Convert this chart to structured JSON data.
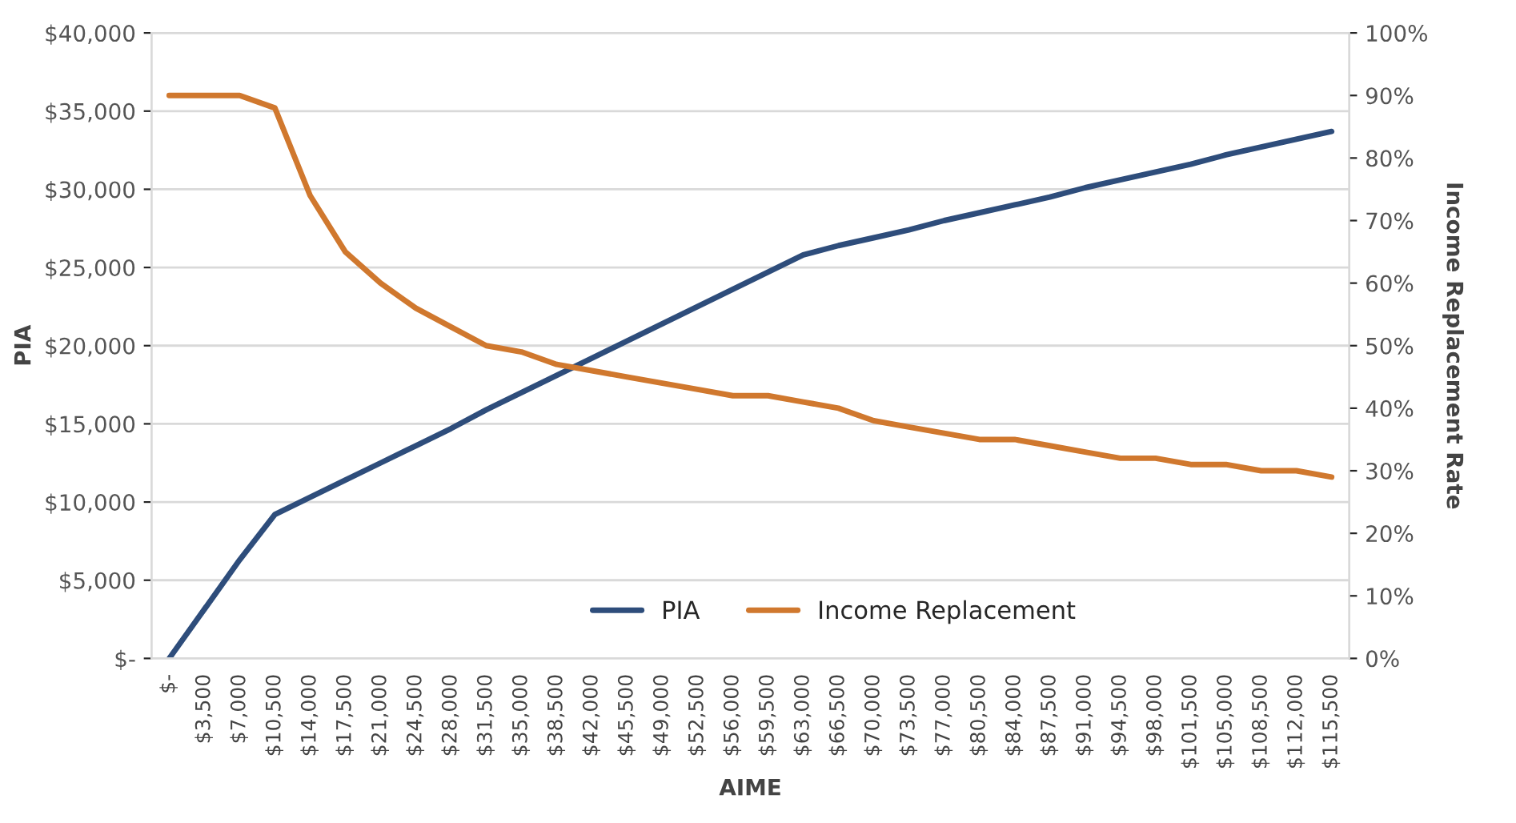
{
  "chart_data": {
    "type": "line",
    "xlabel": "AIME",
    "ylabel": "PIA",
    "y2label": "Income Replacement Rate",
    "categories": [
      "$-",
      "$3,500",
      "$7,000",
      "$10,500",
      "$14,000",
      "$17,500",
      "$21,000",
      "$24,500",
      "$28,000",
      "$31,500",
      "$35,000",
      "$38,500",
      "$42,000",
      "$45,500",
      "$49,000",
      "$52,500",
      "$56,000",
      "$59,500",
      "$63,000",
      "$66,500",
      "$70,000",
      "$73,500",
      "$77,000",
      "$80,500",
      "$84,000",
      "$87,500",
      "$91,000",
      "$94,500",
      "$98,000",
      "$101,500",
      "$105,000",
      "$108,500",
      "$112,000",
      "$115,500"
    ],
    "series": [
      {
        "name": "PIA",
        "color": "#2e4d7b",
        "values": [
          0,
          3150,
          6300,
          9200,
          10300,
          11400,
          12500,
          13600,
          14700,
          15900,
          17000,
          18100,
          19200,
          20300,
          21400,
          22500,
          23600,
          24700,
          25800,
          26400,
          26900,
          27400,
          28000,
          28500,
          29000,
          29500,
          30100,
          30600,
          31100,
          31600,
          32200,
          32700,
          33200,
          33700
        ]
      },
      {
        "name": "Income Replacement",
        "color": "#d0782e",
        "axis": "y2",
        "values": [
          90,
          90,
          90,
          88,
          74,
          65,
          60,
          56,
          53,
          50,
          49,
          47,
          46,
          45,
          44,
          43,
          42,
          42,
          41,
          40,
          38,
          37,
          36,
          35,
          35,
          34,
          33,
          32,
          32,
          31,
          31,
          30,
          30,
          29
        ]
      }
    ],
    "ylim": [
      0,
      40000
    ],
    "yticks": [
      {
        "value": 0,
        "label": "$-"
      },
      {
        "value": 5000,
        "label": "$5,000"
      },
      {
        "value": 10000,
        "label": "$10,000"
      },
      {
        "value": 15000,
        "label": "$15,000"
      },
      {
        "value": 20000,
        "label": "$20,000"
      },
      {
        "value": 25000,
        "label": "$25,000"
      },
      {
        "value": 30000,
        "label": "$30,000"
      },
      {
        "value": 35000,
        "label": "$35,000"
      },
      {
        "value": 40000,
        "label": "$40,000"
      }
    ],
    "y2lim": [
      0,
      100
    ],
    "y2ticks": [
      {
        "value": 0,
        "label": "0%"
      },
      {
        "value": 10,
        "label": "10%"
      },
      {
        "value": 20,
        "label": "20%"
      },
      {
        "value": 30,
        "label": "30%"
      },
      {
        "value": 40,
        "label": "40%"
      },
      {
        "value": 50,
        "label": "50%"
      },
      {
        "value": 60,
        "label": "60%"
      },
      {
        "value": 70,
        "label": "70%"
      },
      {
        "value": 80,
        "label": "80%"
      },
      {
        "value": 90,
        "label": "90%"
      },
      {
        "value": 100,
        "label": "100%"
      }
    ],
    "grid": "y",
    "legend": "bottom",
    "marker": "none",
    "line_style": "solid"
  }
}
